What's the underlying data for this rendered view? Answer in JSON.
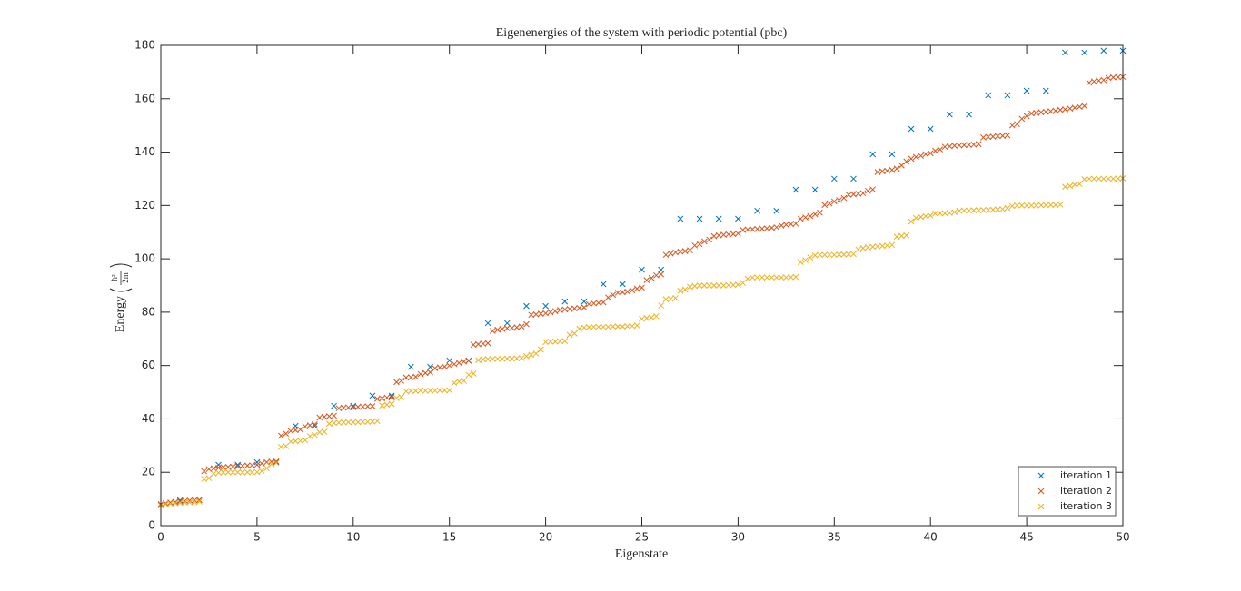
{
  "chart_data": {
    "type": "scatter",
    "title": "Eigenenergies of the system with periodic potential (pbc)",
    "xlabel": "Eigenstate",
    "ylabel": "Energy",
    "ylabel_fraction": {
      "numerator": "ħ²",
      "denominator": "2m"
    },
    "xlim": [
      0,
      50
    ],
    "xticks": [
      0,
      5,
      10,
      15,
      20,
      25,
      30,
      35,
      40,
      45,
      50
    ],
    "ylim": [
      0,
      180
    ],
    "yticks": [
      0,
      20,
      40,
      60,
      80,
      100,
      120,
      140,
      160,
      180
    ],
    "grid": false,
    "legend": "lower right",
    "series": [
      {
        "name": "iteration 1",
        "color": "#0072BD",
        "x": [
          0,
          1,
          2,
          3,
          4,
          5,
          6,
          7,
          8,
          9,
          10,
          11,
          12,
          13,
          14,
          15,
          16,
          17,
          18,
          19,
          20,
          21,
          22,
          23,
          24,
          25,
          26,
          27,
          28,
          29,
          30,
          31,
          32,
          33,
          34,
          35,
          36,
          37,
          38,
          39,
          40,
          41,
          42,
          43,
          44,
          45,
          46,
          47,
          48,
          49,
          50
        ],
        "values": [
          8,
          9.5,
          9.6,
          22.8,
          22.8,
          23.8,
          23.8,
          37.4,
          37.4,
          44.9,
          44.9,
          48.7,
          48.7,
          59.5,
          59.5,
          61.9,
          61.9,
          75.9,
          75.9,
          82.3,
          82.3,
          84,
          84,
          90.5,
          90.5,
          95.9,
          95.9,
          115,
          115,
          115,
          115,
          118,
          118,
          125.9,
          125.9,
          130,
          130,
          139.2,
          139.2,
          148.7,
          148.7,
          154.1,
          154.1,
          161.3,
          161.3,
          163,
          163,
          177.3,
          177.3,
          178,
          178
        ]
      },
      {
        "name": "iteration 2",
        "color": "#D95319",
        "x": [
          0,
          0.25,
          0.5,
          0.75,
          1,
          1.25,
          1.5,
          1.75,
          2,
          2.25,
          2.5,
          2.75,
          3,
          3.25,
          3.5,
          3.75,
          4,
          4.25,
          4.5,
          4.75,
          5,
          5.25,
          5.5,
          5.75,
          6,
          6.25,
          6.5,
          6.75,
          7,
          7.25,
          7.5,
          7.75,
          8,
          8.25,
          8.5,
          8.75,
          9,
          9.25,
          9.5,
          9.75,
          10,
          10.25,
          10.5,
          10.75,
          11,
          11.25,
          11.5,
          11.75,
          12,
          12.25,
          12.5,
          12.75,
          13,
          13.25,
          13.5,
          13.75,
          14,
          14.25,
          14.5,
          14.75,
          15,
          15.25,
          15.5,
          15.75,
          16,
          16.25,
          16.5,
          16.75,
          17,
          17.25,
          17.5,
          17.75,
          18,
          18.25,
          18.5,
          18.75,
          19,
          19.25,
          19.5,
          19.75,
          20,
          20.25,
          20.5,
          20.75,
          21,
          21.25,
          21.5,
          21.75,
          22,
          22.25,
          22.5,
          22.75,
          23,
          23.25,
          23.5,
          23.75,
          24,
          24.25,
          24.5,
          24.75,
          25,
          25.25,
          25.5,
          25.75,
          26,
          26.25,
          26.5,
          26.75,
          27,
          27.25,
          27.5,
          27.75,
          28,
          28.25,
          28.5,
          28.75,
          29,
          29.25,
          29.5,
          29.75,
          30,
          30.25,
          30.5,
          30.75,
          31,
          31.25,
          31.5,
          31.75,
          32,
          32.25,
          32.5,
          32.75,
          33,
          33.25,
          33.5,
          33.75,
          34,
          34.25,
          34.5,
          34.75,
          35,
          35.25,
          35.5,
          35.75,
          36,
          36.25,
          36.5,
          36.75,
          37,
          37.25,
          37.5,
          37.75,
          38,
          38.25,
          38.5,
          38.75,
          39,
          39.25,
          39.5,
          39.75,
          40,
          40.25,
          40.5,
          40.75,
          41,
          41.25,
          41.5,
          41.75,
          42,
          42.25,
          42.5,
          42.75,
          43,
          43.25,
          43.5,
          43.75,
          44,
          44.25,
          44.5,
          44.75,
          45,
          45.25,
          45.5,
          45.75,
          46,
          46.25,
          46.5,
          46.75,
          47,
          47.25,
          47.5,
          47.75,
          48,
          48.25,
          48.5,
          48.75,
          49,
          49.25,
          49.5,
          49.75,
          50
        ],
        "values": [
          8,
          8.4,
          8.7,
          8.9,
          9.1,
          9.3,
          9.4,
          9.5,
          9.6,
          20.4,
          21.2,
          21.5,
          21.7,
          21.9,
          22,
          22.1,
          22.3,
          22.4,
          22.5,
          22.6,
          22.8,
          23.3,
          23.8,
          24,
          24.1,
          33.7,
          34.5,
          35.5,
          35.8,
          36,
          37.2,
          37.6,
          38,
          40.5,
          40.8,
          41,
          41.2,
          44,
          44.2,
          44.3,
          44.4,
          44.5,
          44.6,
          44.7,
          44.8,
          47.5,
          47.7,
          48,
          48.2,
          53.8,
          54.3,
          55.5,
          55.6,
          55.8,
          56.8,
          57.2,
          57.5,
          59,
          59.3,
          59.6,
          60,
          60.5,
          61,
          61.5,
          61.8,
          67.8,
          68,
          68.2,
          68.4,
          73,
          73.4,
          73.7,
          74,
          74.1,
          74.3,
          74.6,
          75.5,
          79,
          79.2,
          79.4,
          79.6,
          80,
          80.4,
          80.8,
          81,
          81.2,
          81.4,
          81.6,
          81.8,
          83,
          83.3,
          83.5,
          83.7,
          85.5,
          86.5,
          87.3,
          87.5,
          87.7,
          88.2,
          88.8,
          89.2,
          92,
          92.8,
          93.8,
          94.2,
          101.5,
          102,
          102.4,
          102.7,
          102.9,
          103.2,
          105,
          105.5,
          106.5,
          107.2,
          108.5,
          108.8,
          109,
          109.2,
          109.3,
          109.5,
          110.8,
          111,
          111.1,
          111.2,
          111.3,
          111.4,
          111.6,
          111.8,
          112.5,
          112.8,
          113,
          113.2,
          115,
          115.5,
          116,
          116.7,
          117.3,
          120.2,
          120.8,
          121.5,
          122,
          122.8,
          124,
          124.2,
          124.4,
          124.6,
          125.5,
          126,
          132.5,
          132.8,
          133,
          133.3,
          133.8,
          135,
          136.5,
          137.5,
          138.2,
          138.6,
          139.2,
          139.6,
          140.5,
          141,
          142,
          142.2,
          142.4,
          142.5,
          142.6,
          142.7,
          142.8,
          143,
          145.5,
          145.7,
          145.8,
          146,
          146.1,
          146.3,
          150,
          150.5,
          152.5,
          153.5,
          154.5,
          154.7,
          154.9,
          155.1,
          155.3,
          155.5,
          155.8,
          156,
          156.3,
          156.6,
          157,
          157.3,
          166,
          166.5,
          166.8,
          167,
          167.8,
          168,
          168.1,
          168.2
        ]
      },
      {
        "name": "iteration 3",
        "color": "#EDB120",
        "x": [
          0,
          0.25,
          0.5,
          0.75,
          1,
          1.25,
          1.5,
          1.75,
          2,
          2.25,
          2.5,
          2.75,
          3,
          3.25,
          3.5,
          3.75,
          4,
          4.25,
          4.5,
          4.75,
          5,
          5.25,
          5.5,
          5.75,
          6,
          6.25,
          6.5,
          6.75,
          7,
          7.25,
          7.5,
          7.75,
          8,
          8.25,
          8.5,
          8.75,
          9,
          9.25,
          9.5,
          9.75,
          10,
          10.25,
          10.5,
          10.75,
          11,
          11.25,
          11.5,
          11.75,
          12,
          12.25,
          12.5,
          12.75,
          13,
          13.25,
          13.5,
          13.75,
          14,
          14.25,
          14.5,
          14.75,
          15,
          15.25,
          15.5,
          15.75,
          16,
          16.25,
          16.5,
          16.75,
          17,
          17.25,
          17.5,
          17.75,
          18,
          18.25,
          18.5,
          18.75,
          19,
          19.25,
          19.5,
          19.75,
          20,
          20.25,
          20.5,
          20.75,
          21,
          21.25,
          21.5,
          21.75,
          22,
          22.25,
          22.5,
          22.75,
          23,
          23.25,
          23.5,
          23.75,
          24,
          24.25,
          24.5,
          24.75,
          25,
          25.25,
          25.5,
          25.75,
          26,
          26.25,
          26.5,
          26.75,
          27,
          27.25,
          27.5,
          27.75,
          28,
          28.25,
          28.5,
          28.75,
          29,
          29.25,
          29.5,
          29.75,
          30,
          30.25,
          30.5,
          30.75,
          31,
          31.25,
          31.5,
          31.75,
          32,
          32.25,
          32.5,
          32.75,
          33,
          33.25,
          33.5,
          33.75,
          34,
          34.25,
          34.5,
          34.75,
          35,
          35.25,
          35.5,
          35.75,
          36,
          36.25,
          36.5,
          36.75,
          37,
          37.25,
          37.5,
          37.75,
          38,
          38.25,
          38.5,
          38.75,
          39,
          39.25,
          39.5,
          39.75,
          40,
          40.25,
          40.5,
          40.75,
          41,
          41.25,
          41.5,
          41.75,
          42,
          42.25,
          42.5,
          42.75,
          43,
          43.25,
          43.5,
          43.75,
          44,
          44.25,
          44.5,
          44.75,
          45,
          45.25,
          45.5,
          45.75,
          46,
          46.25,
          46.5,
          46.75,
          47,
          47.25,
          47.5,
          47.75,
          48,
          48.25,
          48.5,
          48.75,
          49,
          49.25,
          49.5,
          49.75,
          50
        ],
        "values": [
          7.5,
          8,
          8.2,
          8.4,
          8.5,
          8.6,
          8.7,
          8.8,
          9,
          17.5,
          17.8,
          19.5,
          19.8,
          20,
          20,
          20,
          20,
          20,
          20,
          20,
          20.1,
          20.5,
          21.5,
          23,
          23.5,
          29.5,
          29.8,
          31.5,
          31.7,
          31.8,
          32,
          33.5,
          34,
          35,
          35.2,
          38.2,
          38.5,
          38.6,
          38.7,
          38.8,
          38.8,
          38.8,
          38.9,
          38.9,
          39,
          39.2,
          45,
          45.3,
          45.6,
          47.8,
          48.2,
          50.3,
          50.5,
          50.5,
          50.6,
          50.6,
          50.6,
          50.6,
          50.7,
          50.7,
          50.7,
          53.5,
          54,
          54.3,
          56.5,
          57,
          62,
          62.3,
          62.4,
          62.5,
          62.5,
          62.5,
          62.6,
          62.6,
          62.7,
          62.8,
          63.5,
          64,
          64.5,
          66,
          68.8,
          69,
          69,
          69.1,
          69.2,
          71.5,
          72,
          73.8,
          74.2,
          74.4,
          74.5,
          74.5,
          74.5,
          74.5,
          74.6,
          74.6,
          74.6,
          74.7,
          74.8,
          75,
          77.5,
          77.8,
          78,
          78.5,
          82.5,
          84.8,
          85,
          85.3,
          88,
          88.5,
          89.5,
          89.8,
          90,
          90,
          90,
          90,
          90,
          90,
          90.1,
          90.2,
          90.3,
          91,
          92.5,
          93,
          93,
          93,
          93,
          93,
          93,
          93,
          93,
          93.1,
          93.2,
          98.8,
          99.5,
          100.5,
          101.3,
          101.5,
          101.5,
          101.5,
          101.5,
          101.6,
          101.6,
          101.7,
          101.8,
          103.5,
          104,
          104.3,
          104.5,
          104.7,
          104.8,
          105,
          105.2,
          108.3,
          108.6,
          108.8,
          114,
          115.3,
          115.7,
          116,
          116.2,
          117,
          117,
          117.1,
          117.2,
          117.5,
          118,
          118.1,
          118.1,
          118.2,
          118.2,
          118.3,
          118.3,
          118.4,
          118.5,
          118.6,
          119,
          119.8,
          120,
          120,
          120,
          120,
          120,
          120.1,
          120.1,
          120.2,
          120.2,
          120.3,
          127,
          127.3,
          127.8,
          128,
          129.8,
          130,
          130,
          130,
          130,
          130,
          130,
          130.1,
          130.2
        ]
      }
    ]
  }
}
